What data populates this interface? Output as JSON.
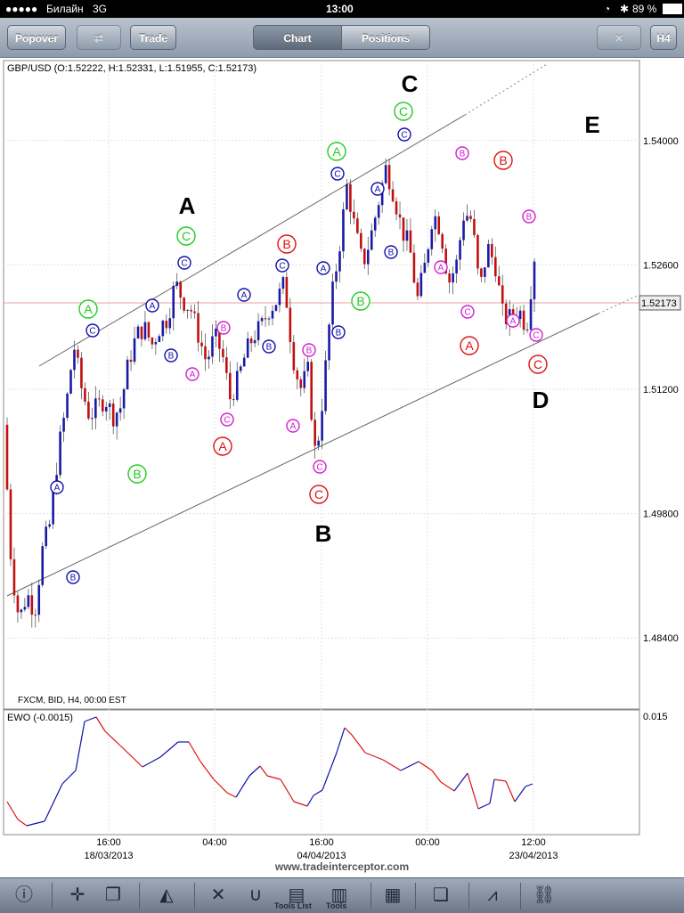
{
  "status_bar": {
    "carrier": "Билайн",
    "network": "3G",
    "time": "13:00",
    "battery": "89 %"
  },
  "navbar": {
    "popover_label": "Popover",
    "trade_label": "Trade",
    "tab_chart_label": "Chart",
    "tab_positions_label": "Positions",
    "timeframe_label": "H4"
  },
  "chart_header": "GBP/USD (O:1.52222, H:1.52331, L:1.51955, C:1.52173)",
  "feed_label": "FXCM, BID, H4, 00:00 EST",
  "indicator_label": "EWO   (-0.0015)",
  "indicator_tick": "0.015",
  "watermark": "www.tradeinterceptor.com",
  "current_price_label": "1.52173",
  "toolbar": {
    "tools_list_label": "Tools List",
    "tools_label": "Tools"
  },
  "colors": {
    "bull": "#1a1aa8",
    "bear": "#c01010",
    "green": "#22cc22",
    "blue": "#1010aa",
    "red": "#dd1111",
    "magenta": "#d020d0"
  },
  "chart_data": {
    "type": "candlestick",
    "symbol": "GBP/USD",
    "ylim": [
      1.476,
      1.549
    ],
    "y_ticks": [
      1.484,
      1.498,
      1.512,
      1.526,
      1.54
    ],
    "y_tick_labels": [
      "1.48400",
      "1.49800",
      "1.51200",
      "1.52600",
      "1.54000"
    ],
    "x_tick_labels": [
      "16:00",
      "04:00",
      "16:00",
      "00:00",
      "12:00"
    ],
    "x_date_labels": [
      "18/03/2013",
      "04/04/2013",
      "23/04/2013"
    ],
    "last_close": 1.52173,
    "close_path": [
      1.508,
      1.492,
      1.486,
      1.489,
      1.487,
      1.494,
      1.497,
      1.505,
      1.51,
      1.517,
      1.512,
      1.509,
      1.51,
      1.511,
      1.509,
      1.51,
      1.515,
      1.518,
      1.519,
      1.517,
      1.519,
      1.52,
      1.524,
      1.522,
      1.521,
      1.518,
      1.515,
      1.518,
      1.516,
      1.511,
      1.513,
      1.516,
      1.518,
      1.519,
      1.521,
      1.522,
      1.524,
      1.516,
      1.512,
      1.514,
      1.504,
      1.512,
      1.522,
      1.528,
      1.535,
      1.53,
      1.526,
      1.529,
      1.533,
      1.537,
      1.534,
      1.53,
      1.528,
      1.522,
      1.526,
      1.532,
      1.53,
      1.524,
      1.526,
      1.532,
      1.531,
      1.523,
      1.528,
      1.526,
      1.52,
      1.52,
      1.521,
      1.519,
      1.527
    ],
    "wave_labels_major": [
      "A",
      "B",
      "C",
      "D",
      "E"
    ],
    "wave_labels_minor": [
      "A",
      "B",
      "C"
    ]
  }
}
